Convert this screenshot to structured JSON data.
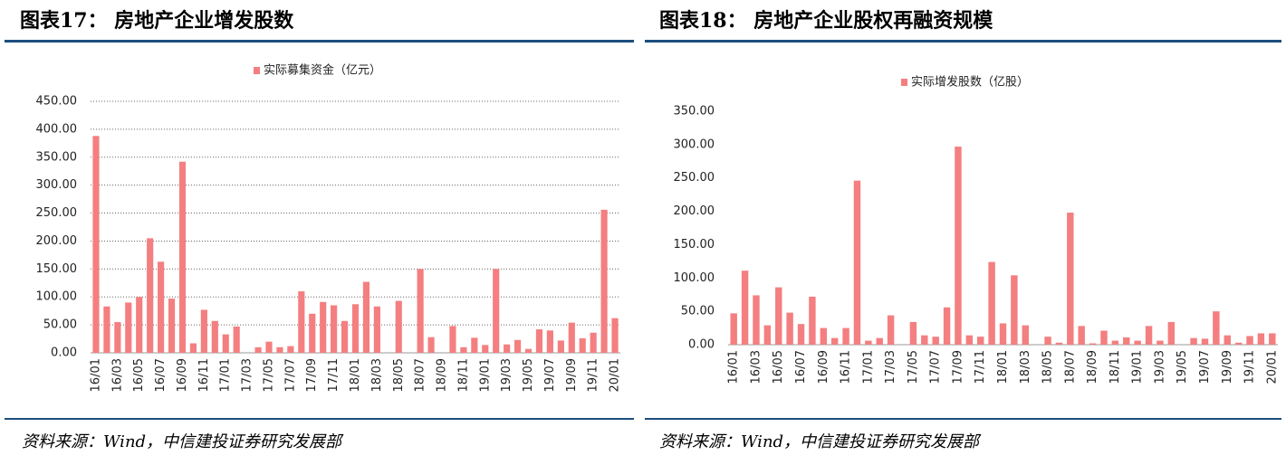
{
  "chart_data": [
    {
      "type": "bar",
      "title": "图表17：  房地产企业增发股数",
      "source": "资料来源：Wind，中信建投证券研究发展部",
      "categories": [
        "16/01",
        null,
        "16/03",
        null,
        "16/05",
        null,
        "16/07",
        null,
        "16/09",
        null,
        "16/11",
        null,
        "17/01",
        null,
        "17/03",
        null,
        "17/05",
        null,
        "17/07",
        null,
        "17/09",
        null,
        "17/11",
        null,
        "18/01",
        null,
        "18/03",
        null,
        "18/05",
        null,
        "18/07",
        null,
        "18/09",
        null,
        "18/11",
        null,
        "19/01",
        null,
        "19/03",
        null,
        "19/05",
        null,
        "19/07",
        null,
        "19/09",
        null,
        "19/11",
        null,
        "20/01"
      ],
      "series": [
        {
          "name": "实际募集资金（亿元）",
          "color": "#f47f80",
          "values": [
            388,
            83,
            55,
            90,
            100,
            205,
            163,
            97,
            342,
            17,
            77,
            57,
            33,
            47,
            0,
            10,
            20,
            10,
            12,
            110,
            70,
            91,
            85,
            57,
            87,
            127,
            83,
            0,
            93,
            0,
            150,
            28,
            0,
            48,
            10,
            27,
            14,
            150,
            15,
            23,
            7,
            42,
            40,
            22,
            54,
            26,
            36,
            256,
            62
          ]
        }
      ],
      "ylim": [
        0,
        450
      ],
      "yticks": [
        {
          "value": 0,
          "label": "0.00"
        },
        {
          "value": 50,
          "label": "50.00"
        },
        {
          "value": 100,
          "label": "100.00"
        },
        {
          "value": 150,
          "label": "150.00"
        },
        {
          "value": 200,
          "label": "200.00"
        },
        {
          "value": 250,
          "label": "250.00"
        },
        {
          "value": 300,
          "label": "300.00"
        },
        {
          "value": 350,
          "label": "350.00"
        },
        {
          "value": 400,
          "label": "400.00"
        },
        {
          "value": 450,
          "label": "450.00"
        }
      ],
      "grid": true,
      "legend": "top"
    },
    {
      "type": "bar",
      "title": "图表18：  房地产企业股权再融资规模",
      "source": "资料来源：Wind，中信建投证券研究发展部",
      "categories": [
        "16/01",
        null,
        "16/03",
        null,
        "16/05",
        null,
        "16/07",
        null,
        "16/09",
        null,
        "16/11",
        null,
        "17/01",
        null,
        "17/03",
        null,
        "17/05",
        null,
        "17/07",
        null,
        "17/09",
        null,
        "17/11",
        null,
        "18/01",
        null,
        "18/03",
        null,
        "18/05",
        null,
        "18/07",
        null,
        "18/09",
        null,
        "18/11",
        null,
        "19/01",
        null,
        "19/03",
        null,
        "19/05",
        null,
        "19/07",
        null,
        "19/09",
        null,
        "19/11",
        null,
        "20/01"
      ],
      "series": [
        {
          "name": "实际增发股数（亿股）",
          "color": "#f47f80",
          "values": [
            47,
            111,
            74,
            29,
            86,
            48,
            31,
            72,
            25,
            10,
            25,
            246,
            6,
            10,
            44,
            0,
            34,
            14,
            12,
            56,
            297,
            14,
            12,
            124,
            32,
            104,
            29,
            0,
            12,
            3,
            198,
            28,
            2,
            21,
            6,
            11,
            6,
            28,
            6,
            34,
            0,
            10,
            9,
            50,
            14,
            3,
            13,
            17,
            17
          ]
        }
      ],
      "ylim": [
        0,
        350
      ],
      "yticks": [
        {
          "value": 0,
          "label": "0.00"
        },
        {
          "value": 50,
          "label": "50.00"
        },
        {
          "value": 100,
          "label": "100.00"
        },
        {
          "value": 150,
          "label": "150.00"
        },
        {
          "value": 200,
          "label": "200.00"
        },
        {
          "value": 250,
          "label": "250.00"
        },
        {
          "value": 300,
          "label": "300.00"
        },
        {
          "value": 350,
          "label": "350.00"
        }
      ],
      "grid": false,
      "legend": "top"
    }
  ]
}
